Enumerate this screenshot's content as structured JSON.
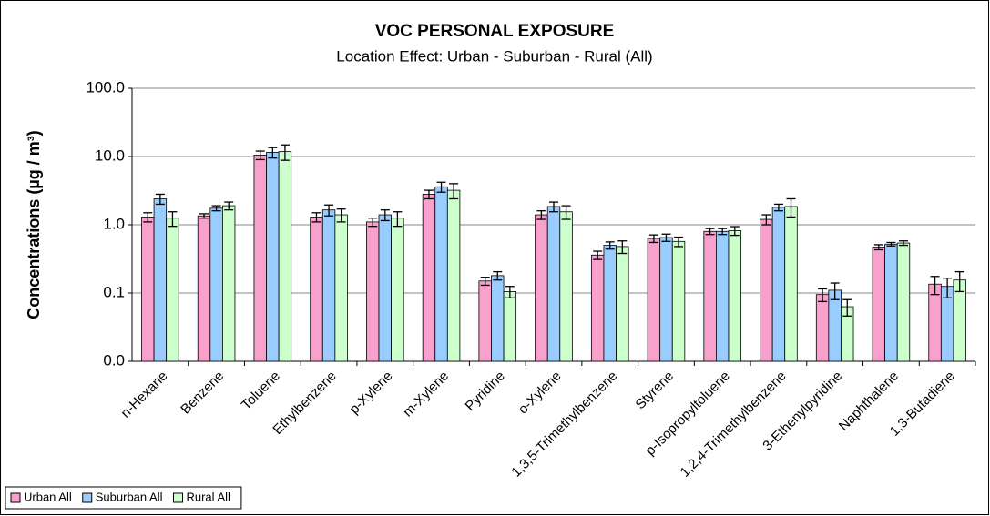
{
  "chart_data": {
    "type": "bar",
    "title": "VOC PERSONAL EXPOSURE",
    "subtitle": "Location Effect: Urban - Suburban - Rural (All)",
    "y_label": "Concentrations (µg / m³)",
    "log_scale": true,
    "grid": true,
    "legend_position": "bottom-left",
    "ylim": [
      0.01,
      100
    ],
    "yticks": [
      {
        "value": 0.01,
        "label": "0.0"
      },
      {
        "value": 0.1,
        "label": "0.1"
      },
      {
        "value": 1,
        "label": "1.0"
      },
      {
        "value": 10,
        "label": "10.0"
      },
      {
        "value": 100,
        "label": "100.0"
      }
    ],
    "categories": [
      "n-Hexane",
      "Benzene",
      "Toluene",
      "Ethylbenzene",
      "p-Xylene",
      "m-Xylene",
      "Pyridine",
      "o-Xylene",
      "1,3,5-Trimethylbenzene",
      "Styrene",
      "p-Isopropyltoluene",
      "1,2,4-Trimethylbenzene",
      "3-Ethenylpyridine",
      "Naphthalene",
      "1,3-Butadiene"
    ],
    "series": [
      {
        "name": "Urban All",
        "color": "#f7a1cc",
        "values": [
          1.3,
          1.35,
          10.5,
          1.3,
          1.1,
          2.8,
          0.15,
          1.4,
          0.36,
          0.63,
          0.8,
          1.2,
          0.095,
          0.47,
          0.135
        ],
        "errors": [
          0.2,
          0.1,
          1.5,
          0.2,
          0.15,
          0.4,
          0.02,
          0.2,
          0.05,
          0.08,
          0.08,
          0.2,
          0.02,
          0.04,
          0.04
        ]
      },
      {
        "name": "Suburban All",
        "color": "#99ccff",
        "values": [
          2.4,
          1.75,
          11.5,
          1.65,
          1.4,
          3.6,
          0.18,
          1.85,
          0.5,
          0.65,
          0.8,
          1.8,
          0.11,
          0.52,
          0.125
        ],
        "errors": [
          0.4,
          0.15,
          2,
          0.3,
          0.25,
          0.6,
          0.025,
          0.3,
          0.06,
          0.08,
          0.08,
          0.2,
          0.03,
          0.03,
          0.04
        ]
      },
      {
        "name": "Rural All",
        "color": "#ccffcc",
        "values": [
          1.25,
          1.9,
          11.8,
          1.4,
          1.25,
          3.2,
          0.105,
          1.55,
          0.48,
          0.57,
          0.82,
          1.85,
          0.063,
          0.54,
          0.155
        ],
        "errors": [
          0.3,
          0.25,
          3,
          0.3,
          0.3,
          0.8,
          0.02,
          0.35,
          0.1,
          0.09,
          0.12,
          0.55,
          0.017,
          0.04,
          0.05
        ]
      }
    ]
  }
}
